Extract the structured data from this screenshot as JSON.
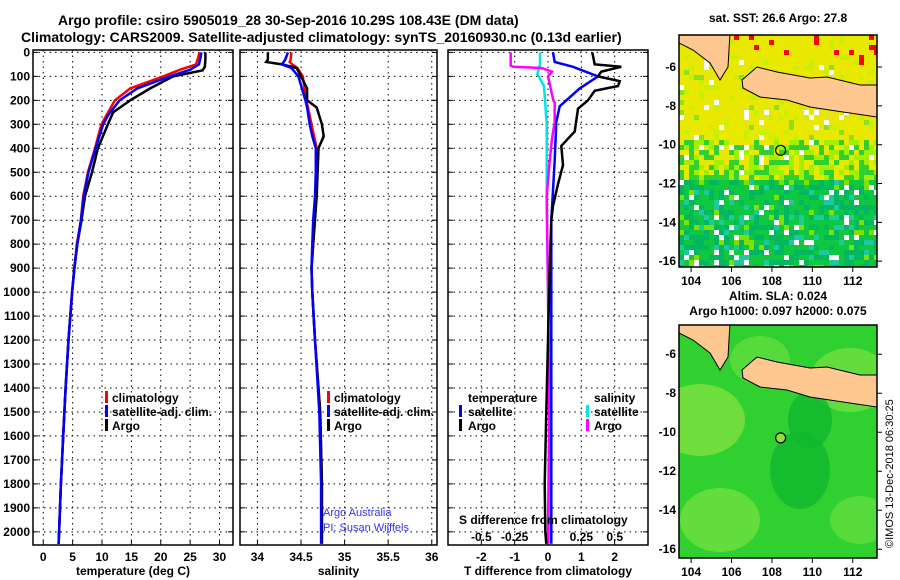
{
  "header": {
    "title_line1": "Argo profile: csiro 5905019_28 30-Sep-2016 10.29S 108.43E (DM data)",
    "title_line2": "Climatology: CARS2009. Satellite-adjusted climatology: synTS_20160930.nc (0.13d earlier)"
  },
  "colors": {
    "climatology": "#ff0000",
    "satellite": "#0000ff",
    "argo": "#000000",
    "s_satellite": "#00e5e5",
    "s_argo": "#ff00ff"
  },
  "legend1": {
    "climatology": "climatology",
    "satellite": "satellite-adj. clim.",
    "argo": "Argo"
  },
  "legend2": {
    "climatology": "climatology",
    "satellite": "satellite-adj. clim.",
    "argo": "Argo"
  },
  "legend3": {
    "t_head": "temperature",
    "t_sat": "satellite",
    "t_argo": "Argo",
    "s_head": "salinity",
    "s_sat": "satellite",
    "s_argo": "Argo"
  },
  "credit": {
    "line1": "Argo Australia",
    "line2": "PI: Susan Wijffels"
  },
  "s_axis_label": "S difference from climatology",
  "copyright": "©IMOS 13-Dec-2018 06:30:25",
  "chart_data": [
    {
      "type": "line",
      "title": "",
      "xlabel": "temperature (deg C)",
      "ylabel": "",
      "xlim": [
        -1.75,
        32.3
      ],
      "ylim": [
        2055,
        -10
      ],
      "xticks": [
        0,
        5,
        10,
        15,
        20,
        25,
        30
      ],
      "yticks": [
        0,
        100,
        200,
        300,
        400,
        500,
        600,
        700,
        800,
        900,
        1000,
        1100,
        1200,
        1300,
        1400,
        1500,
        1600,
        1700,
        1800,
        1900,
        2000
      ],
      "grid": true,
      "series": [
        {
          "name": "climatology",
          "color": "#ff0000",
          "depth": [
            0,
            20,
            50,
            72,
            100,
            150,
            200,
            260,
            300,
            400,
            500,
            600,
            700,
            800,
            900,
            1000,
            1200,
            1400,
            1600,
            1800,
            2000,
            2050
          ],
          "values": [
            26.6,
            26.4,
            26.0,
            23.3,
            20.4,
            14.8,
            12.2,
            10.8,
            9.9,
            8.8,
            7.6,
            6.8,
            6.4,
            5.7,
            5.3,
            4.9,
            4.3,
            3.8,
            3.4,
            3.0,
            2.7,
            2.6
          ]
        },
        {
          "name": "Argo",
          "color": "#000000",
          "depth": [
            0,
            30,
            60,
            75,
            100,
            150,
            200,
            250,
            300,
            400,
            500,
            600,
            700,
            800,
            900,
            1000,
            1200,
            1400,
            1600,
            1800,
            2000,
            2050
          ],
          "values": [
            27.6,
            27.6,
            27.5,
            27.1,
            22.1,
            18.2,
            14.8,
            11.9,
            11.0,
            9.3,
            8.3,
            7.1,
            6.5,
            5.8,
            5.3,
            4.9,
            4.3,
            3.8,
            3.4,
            3.0,
            2.7,
            2.6
          ]
        },
        {
          "name": "satellite-adj. clim.",
          "color": "#0000ff",
          "depth": [
            0,
            20,
            50,
            72,
            100,
            150,
            200,
            260,
            300,
            400,
            500,
            600,
            700,
            800,
            900,
            1000,
            1200,
            1400,
            1600,
            1800,
            2000,
            2050
          ],
          "values": [
            26.9,
            26.8,
            26.5,
            25.0,
            21.5,
            16.0,
            13.0,
            11.1,
            10.2,
            8.9,
            7.7,
            6.9,
            6.4,
            5.8,
            5.3,
            4.9,
            4.3,
            3.8,
            3.4,
            3.0,
            2.7,
            2.6
          ]
        }
      ]
    },
    {
      "type": "line",
      "xlabel": "salinity",
      "xlim": [
        33.8,
        36.06
      ],
      "ylim": [
        2055,
        -10
      ],
      "xticks": [
        34,
        34.5,
        35,
        35.5,
        36
      ],
      "yticks": [
        0,
        100,
        200,
        300,
        400,
        500,
        600,
        700,
        800,
        900,
        1000,
        1100,
        1200,
        1300,
        1400,
        1500,
        1600,
        1700,
        1800,
        1900,
        2000
      ],
      "grid": true,
      "series": [
        {
          "name": "climatology",
          "color": "#ff0000",
          "depth": [
            0,
            30,
            40,
            50,
            65,
            100,
            150,
            200,
            230,
            300,
            350,
            400,
            500,
            600,
            700,
            800,
            900,
            1000,
            1200,
            1500,
            1800,
            2000,
            2050
          ],
          "values": [
            34.39,
            34.38,
            34.37,
            34.4,
            34.46,
            34.52,
            34.54,
            34.56,
            34.58,
            34.62,
            34.65,
            34.68,
            34.68,
            34.67,
            34.65,
            34.64,
            34.62,
            34.63,
            34.66,
            34.72,
            34.74,
            34.74,
            34.74
          ]
        },
        {
          "name": "Argo",
          "color": "#000000",
          "depth": [
            0,
            30,
            40,
            50,
            65,
            100,
            150,
            200,
            230,
            300,
            350,
            400,
            500,
            600,
            700,
            800,
            900,
            1000,
            1200,
            1500,
            1800,
            2000,
            2050
          ],
          "values": [
            34.12,
            34.12,
            34.1,
            34.28,
            34.45,
            34.5,
            34.57,
            34.57,
            34.68,
            34.74,
            34.76,
            34.7,
            34.69,
            34.68,
            34.66,
            34.64,
            34.62,
            34.63,
            34.66,
            34.72,
            34.74,
            34.74,
            34.74
          ]
        },
        {
          "name": "satellite-adj. clim.",
          "color": "#0000ff",
          "depth": [
            0,
            30,
            40,
            50,
            65,
            100,
            150,
            200,
            230,
            300,
            350,
            400,
            500,
            600,
            700,
            800,
            900,
            1000,
            1200,
            1500,
            1800,
            2000,
            2050
          ],
          "values": [
            34.35,
            34.32,
            34.3,
            34.28,
            34.39,
            34.47,
            34.51,
            34.55,
            34.57,
            34.6,
            34.63,
            34.67,
            34.67,
            34.66,
            34.64,
            34.63,
            34.62,
            34.63,
            34.66,
            34.71,
            34.73,
            34.73,
            34.73
          ]
        }
      ]
    },
    {
      "type": "line",
      "xlabel": "T difference from climatology",
      "xlim": [
        -3,
        3
      ],
      "s_xlim": [
        -0.75,
        0.75
      ],
      "ylim": [
        2055,
        -10
      ],
      "xticks": [
        -2,
        -1,
        0,
        1,
        2
      ],
      "s_xticks": [
        "-0.5",
        "-0.25",
        "0",
        "0.25",
        "0.5"
      ],
      "s_xtick_values": [
        -0.5,
        -0.25,
        0,
        0.25,
        0.5
      ],
      "yticks": [
        0,
        100,
        200,
        300,
        400,
        500,
        600,
        700,
        800,
        900,
        1000,
        1100,
        1200,
        1300,
        1400,
        1500,
        1600,
        1700,
        1800,
        1900,
        2000
      ],
      "grid": true,
      "series": [
        {
          "name": "salinity satellite",
          "axis": "S",
          "color": "#00e5e5",
          "depth": [
            0,
            50,
            90,
            140,
            300,
            600,
            1000,
            1500,
            2000,
            2050
          ],
          "values": [
            -0.06,
            -0.06,
            -0.08,
            -0.03,
            -0.01,
            -0.01,
            0,
            0.01,
            0.01,
            0.01
          ]
        },
        {
          "name": "salinity Argo",
          "axis": "S",
          "color": "#ff00ff",
          "depth": [
            0,
            55,
            60,
            65,
            80,
            100,
            150,
            200,
            210,
            290,
            360,
            470,
            600,
            1000,
            1500,
            2000,
            2050
          ],
          "values": [
            -0.28,
            -0.28,
            -0.26,
            -0.05,
            0.03,
            0.0,
            0.02,
            0.04,
            0.05,
            0.05,
            0.03,
            0.01,
            -0.01,
            0.0,
            0.01,
            0.0,
            0.0
          ]
        },
        {
          "name": "temperature satellite",
          "axis": "T",
          "color": "#0000ff",
          "depth": [
            0,
            40,
            60,
            100,
            150,
            225,
            290,
            450,
            700,
            1000,
            1500,
            2000,
            2050
          ],
          "values": [
            0.15,
            0.2,
            0.75,
            1.5,
            0.95,
            0.35,
            0.25,
            0.2,
            0.1,
            0.1,
            0.1,
            0.1,
            0.1
          ]
        },
        {
          "name": "temperature Argo",
          "axis": "T",
          "color": "#000000",
          "depth": [
            0,
            50,
            60,
            80,
            100,
            120,
            140,
            160,
            200,
            235,
            330,
            360,
            390,
            470,
            550,
            640,
            700,
            900,
            1200,
            1500,
            1800,
            2000,
            2050
          ],
          "values": [
            1.33,
            1.4,
            2.2,
            1.6,
            1.5,
            2.15,
            2.1,
            1.4,
            1.2,
            0.9,
            0.8,
            0.6,
            0.4,
            0.45,
            0.3,
            0.15,
            0.1,
            0.05,
            0.0,
            -0.05,
            -0.1,
            -0.08,
            -0.05
          ]
        }
      ]
    },
    {
      "type": "heatmap",
      "title": "sat. SST: 26.6 Argo: 27.8",
      "xticks": [
        104,
        106,
        108,
        110,
        112
      ],
      "yticks": [
        -6,
        -8,
        -10,
        -12,
        -14,
        -16
      ],
      "xlim": [
        103.4,
        113.2
      ],
      "ylim": [
        -16.3,
        -4.35
      ],
      "marker": {
        "lon": 108.43,
        "lat": -10.29
      }
    },
    {
      "type": "heatmap",
      "title": "Altim. SLA: 0.024",
      "subtitle": "Argo h1000: 0.097 h2000: 0.075",
      "xticks": [
        104,
        106,
        108,
        110,
        112
      ],
      "yticks": [
        -6,
        -8,
        -10,
        -12,
        -14,
        -16
      ],
      "xlim": [
        103.4,
        113.2
      ],
      "ylim": [
        -16.45,
        -4.5
      ],
      "marker": {
        "lon": 108.43,
        "lat": -10.29
      }
    }
  ]
}
